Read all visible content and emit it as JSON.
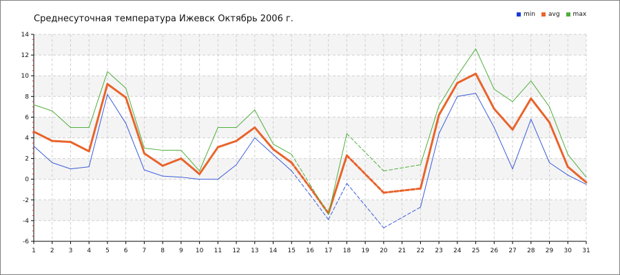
{
  "chart_data": {
    "type": "line",
    "title": "Среднесуточная температура Ижевск  Октябрь 2006 г.",
    "xlabel": "",
    "ylabel": "",
    "x": [
      1,
      2,
      3,
      4,
      5,
      6,
      7,
      8,
      9,
      10,
      11,
      12,
      13,
      14,
      15,
      16,
      17,
      18,
      19,
      20,
      21,
      22,
      23,
      24,
      25,
      26,
      27,
      28,
      29,
      30,
      31
    ],
    "xlim": [
      1,
      31
    ],
    "ylim": [
      -6,
      14
    ],
    "yticks": [
      -6,
      -4,
      -2,
      0,
      2,
      4,
      6,
      8,
      10,
      12,
      14
    ],
    "grid": true,
    "legend_position": "top-right",
    "series": [
      {
        "name": "min",
        "color": "#3a5bd9",
        "values": [
          3.2,
          1.6,
          1.0,
          1.2,
          8.2,
          5.4,
          0.9,
          0.3,
          0.2,
          0.0,
          0.0,
          1.4,
          4.0,
          2.4,
          0.8,
          -1.5,
          -3.9,
          -0.4,
          null,
          -4.7,
          null,
          -2.7,
          4.4,
          8.0,
          8.3,
          5.0,
          1.0,
          5.8,
          1.6,
          0.4,
          -0.5
        ],
        "dashed_ranges": [
          [
            15,
            17
          ],
          [
            17,
            18
          ],
          [
            18,
            20
          ],
          [
            20,
            22
          ]
        ]
      },
      {
        "name": "avg",
        "color": "#e8632b",
        "values": [
          4.6,
          3.7,
          3.6,
          2.7,
          9.2,
          7.9,
          2.5,
          1.3,
          2.0,
          0.5,
          3.1,
          3.7,
          5.0,
          2.9,
          1.6,
          -0.8,
          -3.3,
          2.3,
          null,
          -1.3,
          null,
          -0.9,
          6.2,
          9.3,
          10.2,
          6.8,
          4.8,
          7.8,
          5.5,
          1.2,
          -0.3
        ],
        "dashed_ranges": [
          [
            15,
            17
          ],
          [
            18,
            20
          ],
          [
            20,
            22
          ]
        ]
      },
      {
        "name": "max",
        "color": "#4fae3a",
        "values": [
          7.2,
          6.6,
          5.0,
          5.0,
          10.4,
          8.8,
          3.0,
          2.8,
          2.8,
          0.8,
          5.0,
          5.0,
          6.7,
          3.4,
          2.4,
          -0.5,
          -3.4,
          4.4,
          null,
          0.8,
          null,
          1.4,
          7.1,
          10.0,
          12.6,
          8.7,
          7.5,
          9.5,
          7.0,
          2.4,
          0.2
        ],
        "dashed_ranges": [
          [
            15,
            17
          ],
          [
            18,
            20
          ],
          [
            20,
            22
          ]
        ]
      }
    ]
  }
}
